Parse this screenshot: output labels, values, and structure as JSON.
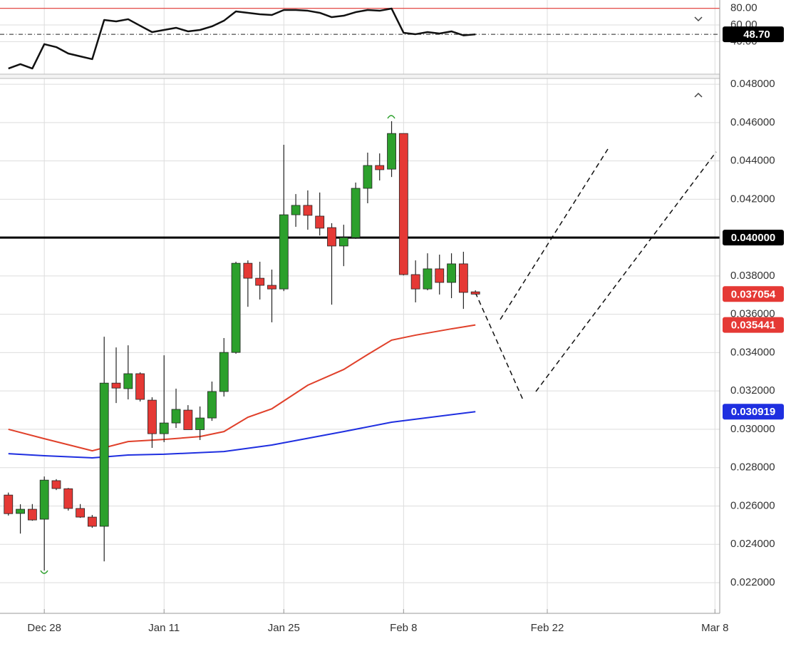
{
  "chart_data": [
    {
      "type": "line",
      "x": [
        -3,
        -2,
        -1,
        0,
        1,
        2,
        3,
        4,
        5,
        6,
        7,
        8,
        9,
        10,
        11,
        12,
        13,
        14,
        15,
        16,
        17,
        18,
        19,
        20,
        21,
        22,
        23,
        24,
        25,
        26,
        27,
        28,
        29,
        30,
        31,
        32,
        33,
        34,
        35,
        36
      ],
      "values": [
        7.7,
        12.9,
        7.7,
        36.9,
        33.4,
        25.7,
        22.3,
        18.9,
        66.0,
        64.3,
        66.9,
        59.1,
        51.4,
        54.0,
        56.6,
        52.3,
        54.0,
        58.3,
        65.1,
        76.3,
        74.6,
        72.9,
        72.0,
        78.0,
        78.0,
        77.1,
        74.6,
        69.4,
        71.1,
        75.4,
        78.0,
        77.1,
        79.7,
        50.6,
        48.9,
        51.4,
        49.7,
        52.3,
        47.5,
        48.7
      ],
      "color": "#111111",
      "xlim": [
        -3.7,
        56.4
      ],
      "ylim": [
        0,
        90
      ],
      "yticks": [
        {
          "value": 80,
          "label": "80.00"
        },
        {
          "value": 60,
          "label": "60.00"
        },
        {
          "value": 40,
          "label": "40.00"
        }
      ],
      "upper_level": 80,
      "upper_level_color": "#e53935",
      "current": {
        "value": 48.7,
        "label": "48.70"
      },
      "grid": true
    },
    {
      "type": "candlestick",
      "x": [
        -3,
        -2,
        -1,
        0,
        1,
        2,
        3,
        4,
        5,
        6,
        7,
        8,
        9,
        10,
        11,
        12,
        13,
        14,
        15,
        16,
        17,
        18,
        19,
        20,
        21,
        22,
        23,
        24,
        25,
        26,
        27,
        28,
        29,
        30,
        31,
        32,
        33,
        34,
        35,
        36
      ],
      "open": [
        0.02657,
        0.02561,
        0.02583,
        0.02531,
        0.02732,
        0.0269,
        0.02587,
        0.02542,
        0.02494,
        0.03241,
        0.03212,
        0.0329,
        0.03152,
        0.02977,
        0.03033,
        0.031,
        0.02998,
        0.03059,
        0.03197,
        0.03401,
        0.03866,
        0.03788,
        0.03751,
        0.03732,
        0.04119,
        0.04168,
        0.04112,
        0.04052,
        0.03956,
        0.04,
        0.04257,
        0.04376,
        0.04357,
        0.04543,
        0.03807,
        0.03732,
        0.03837,
        0.03766,
        0.03863,
        0.03717
      ],
      "high": [
        0.0267,
        0.02609,
        0.0261,
        0.02754,
        0.0274,
        0.02694,
        0.0261,
        0.02553,
        0.03483,
        0.03427,
        0.03438,
        0.03297,
        0.03167,
        0.03386,
        0.03212,
        0.03126,
        0.03119,
        0.03249,
        0.03476,
        0.03874,
        0.03881,
        0.03874,
        0.03833,
        0.04484,
        0.04227,
        0.04246,
        0.04235,
        0.04075,
        0.04067,
        0.04287,
        0.04443,
        0.04439,
        0.04607,
        0.04543,
        0.03881,
        0.03918,
        0.03911,
        0.03918,
        0.03926,
        0.03725
      ],
      "low": [
        0.0255,
        0.02456,
        0.02523,
        0.02263,
        0.02683,
        0.02576,
        0.02538,
        0.02486,
        0.02311,
        0.03137,
        0.03156,
        0.03145,
        0.02903,
        0.02933,
        0.03007,
        0.03007,
        0.02944,
        0.03044,
        0.03171,
        0.03394,
        0.03639,
        0.03677,
        0.03558,
        0.03721,
        0.04056,
        0.04041,
        0.04011,
        0.0365,
        0.03851,
        0.03993,
        0.04179,
        0.04298,
        0.04316,
        0.03803,
        0.03662,
        0.03725,
        0.03703,
        0.03684,
        0.03628,
        0.03703
      ],
      "close": [
        0.0256,
        0.02583,
        0.02527,
        0.02735,
        0.02691,
        0.02587,
        0.02542,
        0.02494,
        0.03241,
        0.03215,
        0.0329,
        0.03156,
        0.02977,
        0.03033,
        0.03104,
        0.02998,
        0.03059,
        0.03197,
        0.03401,
        0.03866,
        0.03788,
        0.03751,
        0.03732,
        0.04119,
        0.04168,
        0.04116,
        0.04049,
        0.03956,
        0.04,
        0.04257,
        0.04376,
        0.04354,
        0.04543,
        0.03807,
        0.03732,
        0.03837,
        0.03766,
        0.03863,
        0.03714,
        0.03705
      ],
      "up_color": "#2ca02c",
      "down_color": "#e53935",
      "lines": [
        {
          "color": "#e0402a",
          "x": [
            -3,
            0,
            4,
            7,
            10,
            13,
            15,
            17,
            19,
            22,
            25,
            27,
            29,
            31,
            34,
            36
          ],
          "values": [
            0.03,
            0.02951,
            0.02888,
            0.02936,
            0.02947,
            0.02962,
            0.02988,
            0.03063,
            0.03107,
            0.0323,
            0.03312,
            0.0339,
            0.03465,
            0.03491,
            0.03524,
            0.035441
          ]
        },
        {
          "color": "#1f2fe0",
          "x": [
            -3,
            0,
            4,
            7,
            10,
            15,
            19,
            25,
            29,
            36
          ],
          "values": [
            0.02873,
            0.02862,
            0.02851,
            0.02866,
            0.0287,
            0.02884,
            0.02918,
            0.02988,
            0.03037,
            0.030919
          ]
        }
      ],
      "markers": [
        {
          "value": 0.04,
          "label": "0.040000",
          "color": "#000000",
          "line": true
        },
        {
          "value": 0.037054,
          "label": "0.037054",
          "color": "#e53935",
          "line": false
        },
        {
          "value": 0.035441,
          "label": "0.035441",
          "color": "#e53935",
          "line": false
        },
        {
          "value": 0.030919,
          "label": "0.030919",
          "color": "#1f2fe0",
          "line": false
        }
      ],
      "xlim": [
        -3.7,
        56.4
      ],
      "ylim": [
        0.0204,
        0.0483
      ],
      "xticks": [
        {
          "value": 0,
          "label": "Dec 28"
        },
        {
          "value": 10,
          "label": "Jan 11"
        },
        {
          "value": 20,
          "label": "Jan 25"
        },
        {
          "value": 30,
          "label": "Feb 8"
        },
        {
          "value": 42,
          "label": "Feb 22"
        },
        {
          "value": 56,
          "label": "Mar 8"
        }
      ],
      "yticks": [
        {
          "value": 0.048,
          "label": "0.048000"
        },
        {
          "value": 0.046,
          "label": "0.046000"
        },
        {
          "value": 0.044,
          "label": "0.044000"
        },
        {
          "value": 0.042,
          "label": "0.042000"
        },
        {
          "value": 0.04,
          "label": "0.040000"
        },
        {
          "value": 0.038,
          "label": "0.038000"
        },
        {
          "value": 0.036,
          "label": "0.036000"
        },
        {
          "value": 0.034,
          "label": "0.034000"
        },
        {
          "value": 0.032,
          "label": "0.032000"
        },
        {
          "value": 0.03,
          "label": "0.030000"
        },
        {
          "value": 0.028,
          "label": "0.028000"
        },
        {
          "value": 0.026,
          "label": "0.026000"
        },
        {
          "value": 0.024,
          "label": "0.024000"
        },
        {
          "value": 0.022,
          "label": "0.022000"
        }
      ],
      "grid": true
    }
  ]
}
